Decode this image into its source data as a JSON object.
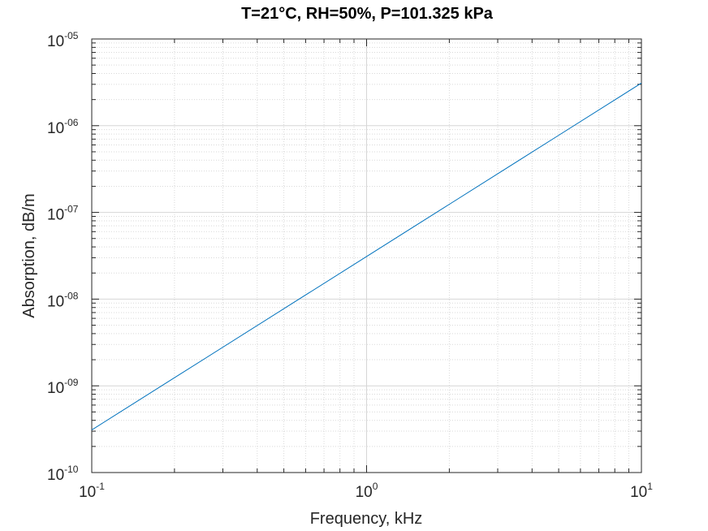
{
  "chart_data": {
    "type": "line",
    "title": "T=21°C, RH=50%, P=101.325 kPa",
    "xlabel": "Frequency, kHz",
    "ylabel": "Absorption, dB/m",
    "x_scale": "log",
    "y_scale": "log",
    "xlim": [
      0.1,
      10
    ],
    "ylim": [
      1e-10,
      1e-05
    ],
    "grid": true,
    "minor_grid": true,
    "x_ticks": [
      {
        "value": 0.1,
        "base": "10",
        "exp": "-1"
      },
      {
        "value": 1,
        "base": "10",
        "exp": "0"
      },
      {
        "value": 10,
        "base": "10",
        "exp": "1"
      }
    ],
    "y_ticks": [
      {
        "value": 1e-10,
        "base": "10",
        "exp": "-10"
      },
      {
        "value": 1e-09,
        "base": "10",
        "exp": "-09"
      },
      {
        "value": 1e-08,
        "base": "10",
        "exp": "-08"
      },
      {
        "value": 1e-07,
        "base": "10",
        "exp": "-07"
      },
      {
        "value": 1e-06,
        "base": "10",
        "exp": "-06"
      },
      {
        "value": 1e-05,
        "base": "10",
        "exp": "-05"
      }
    ],
    "series": [
      {
        "color": "#0072bd",
        "x": [
          0.1,
          0.2,
          0.5,
          1,
          2,
          5,
          10
        ],
        "y": [
          3.1e-10,
          1.24e-09,
          7.75e-09,
          3.1e-08,
          1.24e-07,
          7.75e-07,
          3.1e-06
        ]
      }
    ]
  }
}
